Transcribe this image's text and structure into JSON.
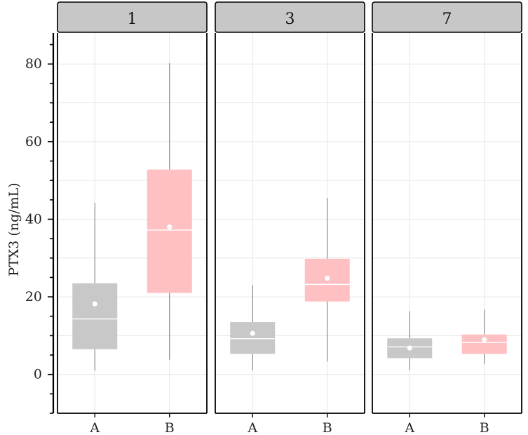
{
  "chart_data": {
    "type": "boxplot",
    "ylabel": "PTX3 (ng/mL)",
    "ylim": [
      -10,
      88
    ],
    "yticks": [
      0,
      20,
      40,
      60,
      80
    ],
    "categories": [
      "A",
      "B"
    ],
    "grid": true,
    "legend": "none",
    "colors": {
      "A": "#c8c8c8",
      "B": "#ffc0c4"
    },
    "facets": [
      {
        "label": "1",
        "boxes": [
          {
            "group": "A",
            "min": 1,
            "q1": 6.5,
            "median": 14.3,
            "q3": 23.5,
            "max": 44.2,
            "mean": 18.2
          },
          {
            "group": "B",
            "min": 3.8,
            "q1": 21,
            "median": 37.2,
            "q3": 52.8,
            "max": 80.2,
            "mean": 38
          }
        ]
      },
      {
        "label": "3",
        "boxes": [
          {
            "group": "A",
            "min": 1.1,
            "q1": 5.3,
            "median": 9.2,
            "q3": 13.5,
            "max": 23,
            "mean": 10.6
          },
          {
            "group": "B",
            "min": 3.3,
            "q1": 18.8,
            "median": 23.2,
            "q3": 29.8,
            "max": 45.5,
            "mean": 24.8
          }
        ]
      },
      {
        "label": "7",
        "boxes": [
          {
            "group": "A",
            "min": 1.1,
            "q1": 4.2,
            "median": 7.1,
            "q3": 9.3,
            "max": 16.3,
            "mean": 6.8
          },
          {
            "group": "B",
            "min": 2.7,
            "q1": 5.3,
            "median": 8.2,
            "q3": 10.3,
            "max": 16.7,
            "mean": 9
          }
        ]
      }
    ]
  }
}
